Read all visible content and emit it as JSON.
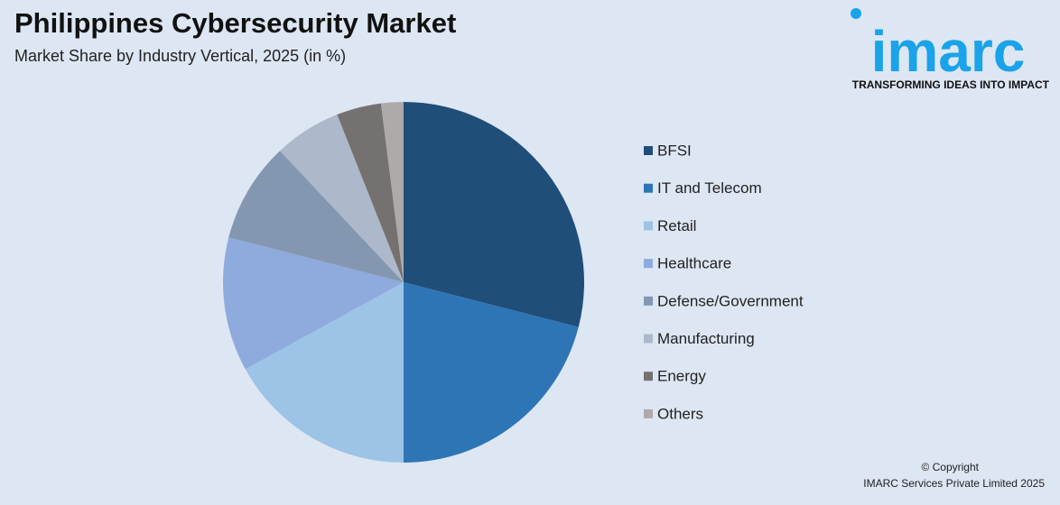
{
  "chart_data": {
    "type": "pie",
    "title": "Philippines Cybersecurity Market",
    "subtitle": "Market Share by Industry Vertical, 2025 (in %)",
    "categories": [
      "BFSI",
      "IT and Telecom",
      "Retail",
      "Healthcare",
      "Defense/Government",
      "Manufacturing",
      "Energy",
      "Others"
    ],
    "values": [
      29,
      21,
      17,
      12,
      9,
      6,
      4,
      2
    ],
    "colors": [
      "#1f4e79",
      "#2e75b6",
      "#9dc3e6",
      "#8faadc",
      "#8497b0",
      "#adb9ca",
      "#767171",
      "#aeaaaa"
    ],
    "legend": "right"
  },
  "logo": {
    "name": "imarc",
    "tagline": "TRANSFORMING IDEAS INTO IMPACT"
  },
  "footer": {
    "copyright": "© Copyright",
    "company": "IMARC Services Private Limited 2025"
  }
}
